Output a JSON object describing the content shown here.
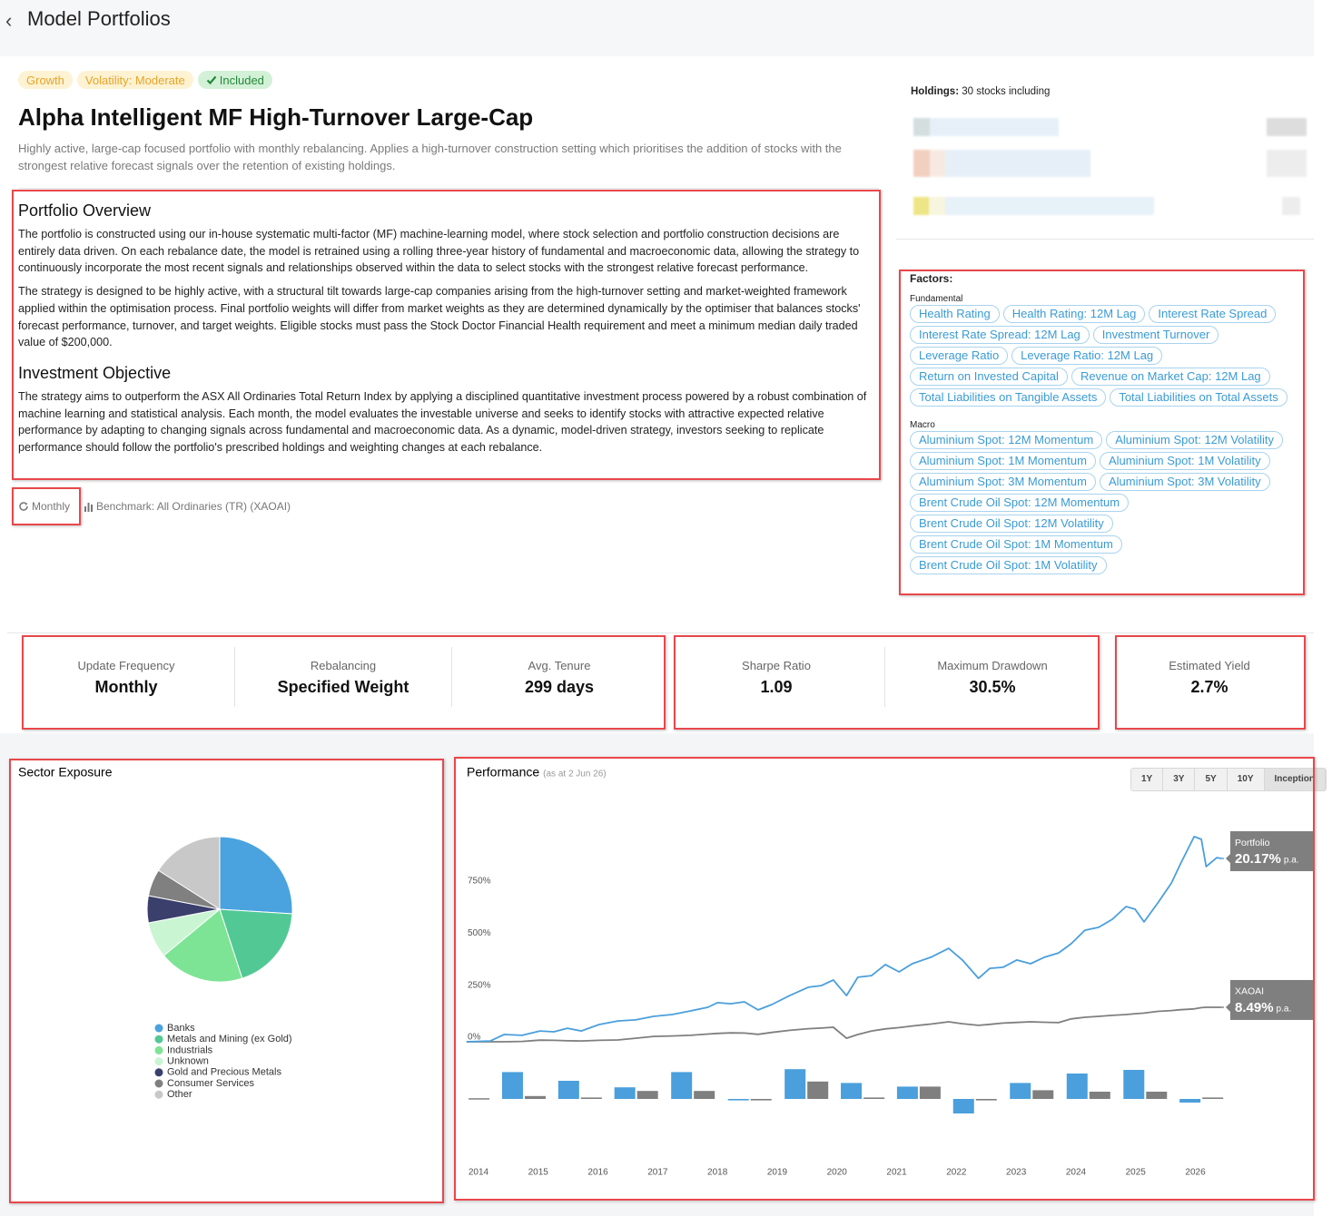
{
  "header": {
    "title": "Model Portfolios"
  },
  "portfolio": {
    "tags": [
      "Growth",
      "Volatility: Moderate",
      "Included"
    ],
    "title": "Alpha Intelligent MF High-Turnover Large-Cap",
    "description": "Highly active, large-cap focused portfolio with monthly rebalancing. Applies a high-turnover construction setting which prioritises the addition of stocks with the strongest relative forecast signals over the retention of existing holdings."
  },
  "overview": {
    "heading": "Portfolio Overview",
    "paragraphs": [
      "The portfolio is constructed using our in-house systematic multi-factor (MF) machine-learning model, where stock selection and portfolio construction decisions are entirely data driven. On each rebalance date, the model is retrained using a rolling three-year history of fundamental and macroeconomic data, allowing the strategy to continuously incorporate the most recent signals and relationships observed within the data to select stocks with the strongest relative forecast performance.",
      "The strategy is designed to be highly active, with a structural tilt towards large-cap companies arising from the high-turnover setting and market-weighted framework applied within the optimisation process. Final portfolio weights will differ from market weights as they are determined dynamically by the optimiser that balances stocks' forecast performance, turnover, and target weights. Eligible stocks must pass the Stock Doctor Financial Health requirement and meet a minimum median daily traded value of $200,000."
    ]
  },
  "objective": {
    "heading": "Investment Objective",
    "paragraphs": [
      "The strategy aims to outperform the ASX All Ordinaries Total Return Index by applying a disciplined quantitative investment process powered by a robust combination of machine learning and statistical analysis. Each month, the model evaluates the investable universe and seeks to identify stocks with attractive expected relative performance by adapting to changing signals across fundamental and macroeconomic data. As a dynamic, model-driven strategy, investors seeking to replicate performance should follow the portfolio's prescribed holdings and weighting changes at each rebalance."
    ]
  },
  "meta": {
    "rebalance": "Monthly",
    "benchmark": "Benchmark: All Ordinaries (TR) (XAOAI)"
  },
  "holdings": {
    "label": "Holdings:",
    "text": "30 stocks including"
  },
  "factors": {
    "heading": "Factors:",
    "groups": [
      {
        "name": "Fundamental",
        "items": [
          "Health Rating",
          "Health Rating: 12M Lag",
          "Interest Rate Spread",
          "Interest Rate Spread: 12M Lag",
          "Investment Turnover",
          "Leverage Ratio",
          "Leverage Ratio: 12M Lag",
          "Return on Invested Capital",
          "Revenue on Market Cap: 12M Lag",
          "Total Liabilities on Tangible Assets",
          "Total Liabilities on Total Assets"
        ]
      },
      {
        "name": "Macro",
        "items": [
          "Aluminium Spot: 12M Momentum",
          "Aluminium Spot: 12M Volatility",
          "Aluminium Spot: 1M Momentum",
          "Aluminium Spot: 1M Volatility",
          "Aluminium Spot: 3M Momentum",
          "Aluminium Spot: 3M Volatility",
          "Brent Crude Oil Spot: 12M Momentum",
          "Brent Crude Oil Spot: 12M Volatility",
          "Brent Crude Oil Spot: 1M Momentum",
          "Brent Crude Oil Spot: 1M Volatility"
        ]
      }
    ]
  },
  "stats": [
    [
      {
        "label": "Update Frequency",
        "value": "Monthly"
      },
      {
        "label": "Rebalancing",
        "value": "Specified Weight"
      },
      {
        "label": "Avg. Tenure",
        "value": "299 days"
      }
    ],
    [
      {
        "label": "Sharpe Ratio",
        "value": "1.09"
      },
      {
        "label": "Maximum Drawdown",
        "value": "30.5%"
      }
    ],
    [
      {
        "label": "Estimated Yield",
        "value": "2.7%"
      }
    ]
  ],
  "chart_data": [
    {
      "type": "pie",
      "title": "Sector Exposure",
      "categories": [
        "Banks",
        "Metals and Mining (ex Gold)",
        "Industrials",
        "Unknown",
        "Gold and Precious Metals",
        "Consumer Services",
        "Other"
      ],
      "values": [
        26,
        19,
        19,
        8,
        6,
        6,
        16
      ],
      "colors": [
        "#4aa3df",
        "#52c995",
        "#7ee495",
        "#c9f5d2",
        "#3b3f6b",
        "#808080",
        "#c8c8c8"
      ]
    },
    {
      "type": "line",
      "title": "Performance",
      "subtitle": "(as at 2 Jun 26)",
      "x": [
        2013.8,
        2014.2,
        2014.43,
        2014.73,
        2015.03,
        2015.26,
        2015.49,
        2015.72,
        2016.02,
        2016.33,
        2016.63,
        2016.93,
        2017.24,
        2017.54,
        2017.84,
        2018.0,
        2018.22,
        2018.45,
        2018.68,
        2018.91,
        2019.21,
        2019.52,
        2019.74,
        2019.94,
        2020.16,
        2020.35,
        2020.58,
        2020.81,
        2021.04,
        2021.26,
        2021.57,
        2021.87,
        2022.1,
        2022.37,
        2022.56,
        2022.78,
        2023.01,
        2023.24,
        2023.47,
        2023.71,
        2023.92,
        2024.15,
        2024.38,
        2024.61,
        2024.84,
        2024.99,
        2025.14,
        2025.37,
        2025.6,
        2025.75,
        2025.98,
        2026.1,
        2026.18,
        2026.36,
        2026.43
      ],
      "xlim": [
        2013.8,
        2026.8
      ],
      "xticks": [
        2014,
        2015,
        2016,
        2017,
        2018,
        2019,
        2020,
        2021,
        2022,
        2023,
        2024,
        2025,
        2026
      ],
      "ylim": [
        -30,
        1000
      ],
      "yticks": [
        {
          "value": 0,
          "label": "0%"
        },
        {
          "value": 250,
          "label": "250%"
        },
        {
          "value": 500,
          "label": "500%"
        },
        {
          "value": 750,
          "label": "750%"
        }
      ],
      "series": [
        {
          "name": "Portfolio",
          "color": "#4a9fdc",
          "callout": "20.17%",
          "callout_unit": "p.a.",
          "values": [
            0,
            4,
            35,
            31,
            52,
            48,
            65,
            52,
            83,
            100,
            105,
            122,
            131,
            148,
            166,
            188,
            183,
            192,
            153,
            179,
            222,
            262,
            270,
            297,
            222,
            310,
            318,
            371,
            336,
            375,
            406,
            449,
            393,
            305,
            353,
            358,
            393,
            375,
            406,
            427,
            471,
            536,
            550,
            589,
            650,
            637,
            576,
            667,
            763,
            855,
            986,
            973,
            842,
            885,
            881
          ]
        },
        {
          "name": "XAOAI",
          "color": "#7f7f7f",
          "callout": "8.49%",
          "callout_unit": "p.a.",
          "values": [
            0,
            0,
            0,
            2,
            8,
            7,
            5,
            4,
            7,
            9,
            17,
            26,
            28,
            31,
            37,
            40,
            43,
            42,
            36,
            45,
            55,
            63,
            66,
            70,
            17,
            35,
            52,
            62,
            68,
            76,
            85,
            96,
            87,
            79,
            84,
            90,
            93,
            96,
            94,
            92,
            110,
            118,
            122,
            127,
            131,
            135,
            138,
            146,
            150,
            154,
            158,
            164,
            166,
            166,
            166
          ]
        }
      ],
      "bars": {
        "x": [
          2013.82,
          2014.76,
          2015.7,
          2016.64,
          2017.59,
          2018.54,
          2019.49,
          2020.43,
          2021.37,
          2022.31,
          2023.26,
          2024.21,
          2025.16,
          2026.1
        ],
        "series": [
          {
            "values": [
              null,
              37,
              25,
              16,
              37,
              -2,
              41,
              22,
              17,
              -20,
              22,
              35,
              40,
              -5
            ]
          },
          {
            "values": [
              1,
              4,
              2,
              11,
              11,
              -2,
              24,
              2,
              17,
              -2,
              12,
              10,
              10,
              2
            ]
          }
        ]
      },
      "ranges": [
        "1Y",
        "3Y",
        "5Y",
        "10Y",
        "Inception"
      ],
      "active_range": 4
    }
  ]
}
